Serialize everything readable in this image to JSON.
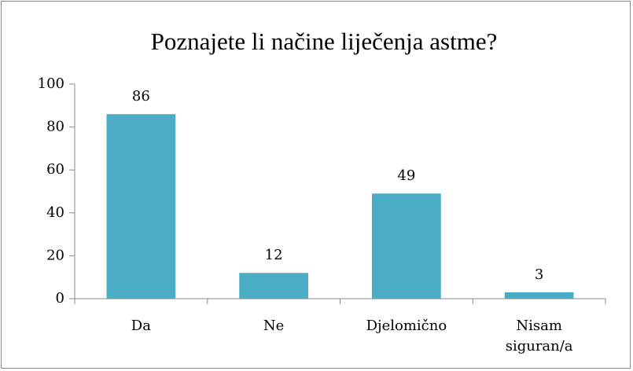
{
  "chart_data": {
    "type": "bar",
    "title": "Poznajete li načine liječenja astme?",
    "categories": [
      "Da",
      "Ne",
      "Djelomično",
      "Nisam siguran/a"
    ],
    "values": [
      86,
      12,
      49,
      3
    ],
    "color": "#4bacc6",
    "ylim": [
      0,
      100
    ],
    "yticks": [
      0,
      20,
      40,
      60,
      80,
      100
    ],
    "grid": false,
    "data_labels": true
  }
}
